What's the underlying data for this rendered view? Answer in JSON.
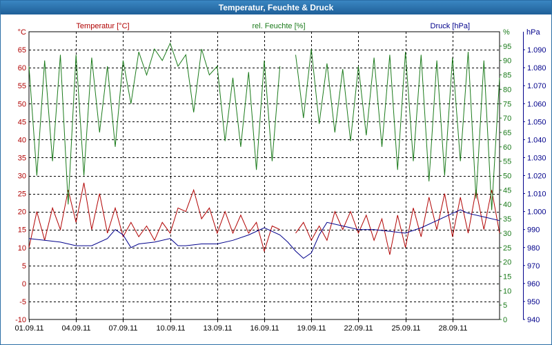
{
  "window_title": "Temperatur, Feuchte & Druck",
  "colors": {
    "temperature": "#b00000",
    "humidity": "#1a7a1a",
    "pressure": "#00008b",
    "grid": "#000000",
    "titlebar": "#2a6ea6"
  },
  "chart_data": {
    "type": "line",
    "grid": true,
    "x_tick_labels": [
      "01.09.11",
      "04.09.11",
      "07.09.11",
      "10.09.11",
      "13.09.11",
      "16.09.11",
      "19.09.11",
      "22.09.11",
      "25.09.11",
      "28.09.11"
    ],
    "x_range_days": [
      "01.09.11",
      "01.10.11"
    ],
    "axes": {
      "temperature": {
        "title": "Temperatur [°C]",
        "unit": "°C",
        "range": [
          -10,
          70
        ],
        "ticks": [
          "-10",
          "-5",
          "0",
          "5",
          "10",
          "15",
          "20",
          "25",
          "30",
          "35",
          "40",
          "45",
          "50",
          "55",
          "60",
          "65"
        ]
      },
      "humidity": {
        "title": "rel. Feuchte [%]",
        "unit": "%",
        "range": [
          0,
          100
        ],
        "ticks": [
          "0",
          "5",
          "10",
          "15",
          "20",
          "25",
          "30",
          "35",
          "40",
          "45",
          "50",
          "55",
          "60",
          "65",
          "70",
          "75",
          "80",
          "85",
          "90",
          "95"
        ]
      },
      "pressure": {
        "title": "Druck [hPa]",
        "unit": "hPa",
        "range": [
          940,
          1100
        ],
        "ticks": [
          "940",
          "950",
          "960",
          "970",
          "980",
          "990",
          "1.000",
          "1.010",
          "1.020",
          "1.030",
          "1.040",
          "1.050",
          "1.060",
          "1.070",
          "1.080",
          "1.090"
        ]
      }
    },
    "series": [
      {
        "name": "Temperatur [°C]",
        "axis": "temperature",
        "points": [
          [
            "01.09.11 00:00",
            10
          ],
          [
            "01.09.11 12:00",
            20
          ],
          [
            "02.09.11 00:00",
            12
          ],
          [
            "02.09.11 12:00",
            21
          ],
          [
            "03.09.11 00:00",
            15
          ],
          [
            "03.09.11 12:00",
            26
          ],
          [
            "04.09.11 00:00",
            17
          ],
          [
            "04.09.11 12:00",
            28
          ],
          [
            "05.09.11 00:00",
            15
          ],
          [
            "05.09.11 12:00",
            25
          ],
          [
            "06.09.11 00:00",
            14
          ],
          [
            "06.09.11 12:00",
            21
          ],
          [
            "07.09.11 00:00",
            13
          ],
          [
            "07.09.11 12:00",
            17
          ],
          [
            "08.09.11 00:00",
            13
          ],
          [
            "08.09.11 12:00",
            16
          ],
          [
            "09.09.11 00:00",
            12
          ],
          [
            "09.09.11 12:00",
            17
          ],
          [
            "10.09.11 00:00",
            14
          ],
          [
            "10.09.11 12:00",
            21
          ],
          [
            "11.09.11 00:00",
            20
          ],
          [
            "11.09.11 12:00",
            26
          ],
          [
            "12.09.11 00:00",
            18
          ],
          [
            "12.09.11 12:00",
            21
          ],
          [
            "13.09.11 00:00",
            14
          ],
          [
            "13.09.11 12:00",
            20
          ],
          [
            "14.09.11 00:00",
            14
          ],
          [
            "14.09.11 12:00",
            19
          ],
          [
            "15.09.11 00:00",
            14
          ],
          [
            "15.09.11 12:00",
            17
          ],
          [
            "16.09.11 00:00",
            9
          ],
          [
            "16.09.11 12:00",
            16
          ],
          [
            "17.09.11 00:00",
            15
          ]
        ]
      },
      {
        "name": "Temperatur [°C]",
        "axis": "temperature",
        "points": [
          [
            "18.09.11 00:00",
            14
          ],
          [
            "18.09.11 12:00",
            17
          ],
          [
            "19.09.11 00:00",
            12
          ],
          [
            "19.09.11 12:00",
            16
          ],
          [
            "20.09.11 00:00",
            12
          ],
          [
            "20.09.11 12:00",
            20
          ],
          [
            "21.09.11 00:00",
            15
          ],
          [
            "21.09.11 12:00",
            20
          ],
          [
            "22.09.11 00:00",
            14
          ],
          [
            "22.09.11 12:00",
            19
          ],
          [
            "23.09.11 00:00",
            12
          ],
          [
            "23.09.11 12:00",
            18
          ],
          [
            "24.09.11 00:00",
            8
          ],
          [
            "24.09.11 12:00",
            19
          ],
          [
            "25.09.11 00:00",
            10
          ],
          [
            "25.09.11 12:00",
            21
          ],
          [
            "26.09.11 00:00",
            13
          ],
          [
            "26.09.11 12:00",
            24
          ],
          [
            "27.09.11 00:00",
            15
          ],
          [
            "27.09.11 12:00",
            25
          ],
          [
            "28.09.11 00:00",
            13
          ],
          [
            "28.09.11 12:00",
            24
          ],
          [
            "29.09.11 00:00",
            14
          ],
          [
            "29.09.11 12:00",
            26
          ],
          [
            "30.09.11 00:00",
            15
          ],
          [
            "30.09.11 12:00",
            26
          ],
          [
            "01.10.11 00:00",
            14
          ]
        ]
      },
      {
        "name": "rel. Feuchte [%]",
        "axis": "humidity",
        "points": [
          [
            "01.09.11 00:00",
            88
          ],
          [
            "01.09.11 12:00",
            50
          ],
          [
            "02.09.11 00:00",
            90
          ],
          [
            "02.09.11 12:00",
            55
          ],
          [
            "03.09.11 00:00",
            92
          ],
          [
            "03.09.11 12:00",
            40
          ],
          [
            "04.09.11 00:00",
            92
          ],
          [
            "04.09.11 12:00",
            50
          ],
          [
            "05.09.11 00:00",
            91
          ],
          [
            "05.09.11 12:00",
            65
          ],
          [
            "06.09.11 00:00",
            88
          ],
          [
            "06.09.11 12:00",
            60
          ],
          [
            "07.09.11 00:00",
            90
          ],
          [
            "07.09.11 12:00",
            75
          ],
          [
            "08.09.11 00:00",
            93
          ],
          [
            "08.09.11 12:00",
            85
          ],
          [
            "09.09.11 00:00",
            94
          ],
          [
            "09.09.11 12:00",
            90
          ],
          [
            "10.09.11 00:00",
            96
          ],
          [
            "10.09.11 12:00",
            88
          ],
          [
            "11.09.11 00:00",
            92
          ],
          [
            "11.09.11 12:00",
            72
          ],
          [
            "12.09.11 00:00",
            94
          ],
          [
            "12.09.11 12:00",
            85
          ],
          [
            "13.09.11 00:00",
            88
          ],
          [
            "13.09.11 12:00",
            62
          ],
          [
            "14.09.11 00:00",
            84
          ],
          [
            "14.09.11 12:00",
            60
          ],
          [
            "15.09.11 00:00",
            86
          ],
          [
            "15.09.11 12:00",
            52
          ],
          [
            "16.09.11 00:00",
            90
          ],
          [
            "16.09.11 12:00",
            55
          ],
          [
            "17.09.11 00:00",
            88
          ]
        ]
      },
      {
        "name": "rel. Feuchte [%]",
        "axis": "humidity",
        "points": [
          [
            "18.09.11 00:00",
            92
          ],
          [
            "18.09.11 12:00",
            70
          ],
          [
            "19.09.11 00:00",
            94
          ],
          [
            "19.09.11 12:00",
            68
          ],
          [
            "20.09.11 00:00",
            89
          ],
          [
            "20.09.11 12:00",
            65
          ],
          [
            "21.09.11 00:00",
            87
          ],
          [
            "21.09.11 12:00",
            62
          ],
          [
            "22.09.11 00:00",
            88
          ],
          [
            "22.09.11 12:00",
            64
          ],
          [
            "23.09.11 00:00",
            91
          ],
          [
            "23.09.11 12:00",
            60
          ],
          [
            "24.09.11 00:00",
            92
          ],
          [
            "24.09.11 12:00",
            52
          ],
          [
            "25.09.11 00:00",
            93
          ],
          [
            "25.09.11 12:00",
            55
          ],
          [
            "26.09.11 00:00",
            92
          ],
          [
            "26.09.11 12:00",
            48
          ],
          [
            "27.09.11 00:00",
            90
          ],
          [
            "27.09.11 12:00",
            50
          ],
          [
            "28.09.11 00:00",
            91
          ],
          [
            "28.09.11 12:00",
            55
          ],
          [
            "29.09.11 00:00",
            93
          ],
          [
            "29.09.11 12:00",
            42
          ],
          [
            "30.09.11 00:00",
            90
          ],
          [
            "30.09.11 12:00",
            38
          ],
          [
            "01.10.11 00:00",
            84
          ]
        ]
      },
      {
        "name": "Druck [hPa]",
        "axis": "pressure",
        "points": [
          [
            "01.09.11 00:00",
            985
          ],
          [
            "02.09.11 00:00",
            984
          ],
          [
            "03.09.11 00:00",
            983
          ],
          [
            "04.09.11 00:00",
            981
          ],
          [
            "05.09.11 00:00",
            981
          ],
          [
            "06.09.11 00:00",
            985
          ],
          [
            "06.09.11 12:00",
            990
          ],
          [
            "07.09.11 00:00",
            987
          ],
          [
            "07.09.11 12:00",
            980
          ],
          [
            "08.09.11 00:00",
            982
          ],
          [
            "09.09.11 00:00",
            983
          ],
          [
            "10.09.11 00:00",
            985
          ],
          [
            "10.09.11 12:00",
            981
          ],
          [
            "11.09.11 00:00",
            981
          ],
          [
            "12.09.11 00:00",
            982
          ],
          [
            "13.09.11 00:00",
            982
          ],
          [
            "14.09.11 00:00",
            984
          ],
          [
            "15.09.11 00:00",
            987
          ],
          [
            "16.09.11 00:00",
            991
          ],
          [
            "17.09.11 00:00",
            987
          ],
          [
            "17.09.11 12:00",
            983
          ],
          [
            "18.09.11 00:00",
            978
          ],
          [
            "18.09.11 12:00",
            974
          ],
          [
            "19.09.11 00:00",
            977
          ],
          [
            "19.09.11 12:00",
            987
          ],
          [
            "20.09.11 00:00",
            994
          ],
          [
            "21.09.11 00:00",
            992
          ],
          [
            "22.09.11 00:00",
            990
          ],
          [
            "23.09.11 00:00",
            990
          ],
          [
            "24.09.11 00:00",
            989
          ],
          [
            "25.09.11 00:00",
            988
          ],
          [
            "26.09.11 00:00",
            991
          ],
          [
            "27.09.11 00:00",
            995
          ],
          [
            "28.09.11 00:00",
            999
          ],
          [
            "28.09.11 12:00",
            1001
          ],
          [
            "29.09.11 00:00",
            999
          ],
          [
            "30.09.11 00:00",
            997
          ],
          [
            "01.10.11 00:00",
            995
          ]
        ]
      }
    ]
  }
}
